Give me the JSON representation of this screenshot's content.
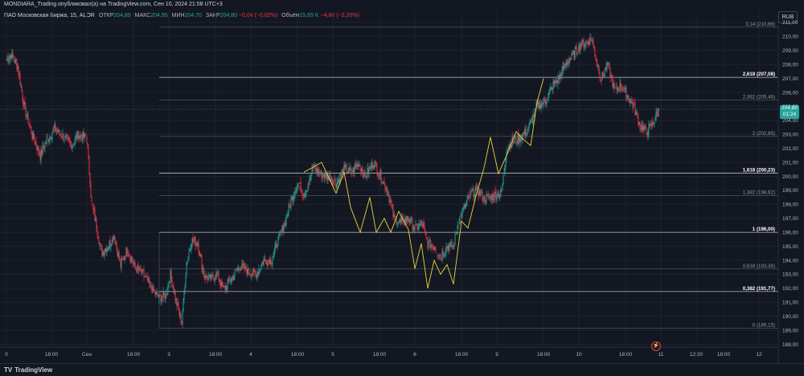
{
  "header": {
    "text": "MONDIARA_Trading опубликовал(а) на TradingView.com, Сен 10, 2024 21:58 UTC+3"
  },
  "legend": {
    "symbol": "ПАО Московская Биржа, 15, ALOR",
    "open_label": "ОТКР",
    "open": "204,80",
    "high_label": "МАКС",
    "high": "204,95",
    "low_label": "МИН",
    "low": "204,70",
    "close_label": "ЗАКР",
    "close": "204,80",
    "change": "−0,04 (−0,02%)",
    "volume_label": "Объём",
    "volume": "15,65 K",
    "volume_change": "−4,60 (−2,20%)"
  },
  "currency": "RUB",
  "price_tag": {
    "price": "204,80",
    "countdown": "01:24"
  },
  "footer": {
    "brand": "TradingView"
  },
  "colors": {
    "background": "#131722",
    "up": "#26a69a",
    "down": "#f23645",
    "fib_line": "#b2b5be",
    "zigzag": "#e8d539"
  },
  "chart_data": {
    "type": "candlestick",
    "ylim": [
      187.8,
      211.8
    ],
    "y_ticks": [
      "188,00",
      "189,00",
      "190,00",
      "191,00",
      "192,00",
      "193,00",
      "194,00",
      "195,00",
      "196,00",
      "197,00",
      "198,00",
      "199,00",
      "200,00",
      "201,00",
      "202,00",
      "203,00",
      "204,00",
      "205,00",
      "206,00",
      "207,00",
      "208,00",
      "209,00",
      "210,00",
      "211,00"
    ],
    "x_ticks": [
      {
        "label": "0",
        "i": 0
      },
      {
        "label": "18:00",
        "i": 56
      },
      {
        "label": "Сен",
        "i": 100
      },
      {
        "label": "18:00",
        "i": 158
      },
      {
        "label": "3",
        "i": 202
      },
      {
        "label": "18:00",
        "i": 260
      },
      {
        "label": "4",
        "i": 304
      },
      {
        "label": "18:00",
        "i": 362
      },
      {
        "label": "5",
        "i": 406
      },
      {
        "label": "18:00",
        "i": 464
      },
      {
        "label": "6",
        "i": 508
      },
      {
        "label": "18:00",
        "i": 566
      },
      {
        "label": "9",
        "i": 610
      },
      {
        "label": "18:00",
        "i": 668
      },
      {
        "label": "10",
        "i": 712
      },
      {
        "label": "18:00",
        "i": 770
      },
      {
        "label": "11",
        "i": 814
      },
      {
        "label": "12:30",
        "i": 858
      },
      {
        "label": "18:00",
        "i": 892
      },
      {
        "label": "12",
        "i": 936
      }
    ],
    "candle_anchors": [
      [
        0,
        208.4
      ],
      [
        6,
        208.7
      ],
      [
        14,
        207.8
      ],
      [
        22,
        205.0
      ],
      [
        32,
        203.0
      ],
      [
        42,
        201.5
      ],
      [
        50,
        202.6
      ],
      [
        60,
        203.4
      ],
      [
        70,
        202.9
      ],
      [
        80,
        202.2
      ],
      [
        90,
        203.0
      ],
      [
        100,
        202.7
      ],
      [
        106,
        198.0
      ],
      [
        112,
        196.5
      ],
      [
        118,
        194.5
      ],
      [
        126,
        195.0
      ],
      [
        134,
        195.8
      ],
      [
        142,
        193.6
      ],
      [
        150,
        194.8
      ],
      [
        160,
        193.5
      ],
      [
        170,
        193.0
      ],
      [
        180,
        192.0
      ],
      [
        190,
        191.3
      ],
      [
        198,
        191.5
      ],
      [
        204,
        193.0
      ],
      [
        212,
        190.8
      ],
      [
        218,
        189.6
      ],
      [
        224,
        193.8
      ],
      [
        230,
        195.4
      ],
      [
        238,
        195.2
      ],
      [
        246,
        192.9
      ],
      [
        254,
        192.6
      ],
      [
        262,
        193.0
      ],
      [
        270,
        191.9
      ],
      [
        280,
        192.7
      ],
      [
        290,
        193.6
      ],
      [
        300,
        193.2
      ],
      [
        310,
        193.0
      ],
      [
        320,
        194.0
      ],
      [
        330,
        194.0
      ],
      [
        338,
        195.5
      ],
      [
        346,
        196.6
      ],
      [
        354,
        198.3
      ],
      [
        362,
        199.5
      ],
      [
        370,
        198.8
      ],
      [
        376,
        199.5
      ],
      [
        382,
        200.7
      ],
      [
        392,
        200.1
      ],
      [
        402,
        200.0
      ],
      [
        410,
        199.5
      ],
      [
        420,
        200.5
      ],
      [
        430,
        200.3
      ],
      [
        438,
        201.0
      ],
      [
        446,
        200.0
      ],
      [
        456,
        201.0
      ],
      [
        466,
        200.0
      ],
      [
        474,
        199.0
      ],
      [
        482,
        197.0
      ],
      [
        490,
        196.7
      ],
      [
        500,
        197.0
      ],
      [
        508,
        196.2
      ],
      [
        516,
        196.7
      ],
      [
        524,
        195.2
      ],
      [
        532,
        195.0
      ],
      [
        540,
        194.3
      ],
      [
        548,
        195.0
      ],
      [
        556,
        195.0
      ],
      [
        562,
        196.8
      ],
      [
        570,
        197.8
      ],
      [
        578,
        198.8
      ],
      [
        586,
        199.0
      ],
      [
        594,
        198.4
      ],
      [
        602,
        198.5
      ],
      [
        610,
        198.7
      ],
      [
        616,
        198.9
      ],
      [
        622,
        202.0
      ],
      [
        630,
        202.5
      ],
      [
        640,
        202.8
      ],
      [
        650,
        203.5
      ],
      [
        660,
        205.0
      ],
      [
        670,
        205.4
      ],
      [
        680,
        206.5
      ],
      [
        690,
        207.3
      ],
      [
        698,
        208.3
      ],
      [
        706,
        208.7
      ],
      [
        714,
        209.5
      ],
      [
        722,
        209.5
      ],
      [
        728,
        209.9
      ],
      [
        734,
        208.2
      ],
      [
        740,
        207.0
      ],
      [
        748,
        208.0
      ],
      [
        756,
        206.2
      ],
      [
        764,
        206.5
      ],
      [
        772,
        205.8
      ],
      [
        780,
        205.0
      ],
      [
        788,
        203.6
      ],
      [
        796,
        203.2
      ],
      [
        804,
        203.8
      ],
      [
        812,
        204.8
      ]
    ],
    "fib_levels": [
      {
        "label": "0 (189,15)",
        "value": 189.15,
        "bold": false
      },
      {
        "label": "0,382 (191,77)",
        "value": 191.77,
        "bold": true
      },
      {
        "label": "0,618 (193,38)",
        "value": 193.38,
        "bold": false
      },
      {
        "label": "1 (196,00)",
        "value": 196.0,
        "bold": true
      },
      {
        "label": "1,382 (198,62)",
        "value": 198.62,
        "bold": false
      },
      {
        "label": "1,618 (200,23)",
        "value": 200.23,
        "bold": true
      },
      {
        "label": "2 (202,85)",
        "value": 202.85,
        "bold": false
      },
      {
        "label": "2,382 (205,46)",
        "value": 205.46,
        "bold": false
      },
      {
        "label": "2,618 (207,08)",
        "value": 207.08,
        "bold": true
      },
      {
        "label": "3,14 (210,66)",
        "value": 210.66,
        "bold": false
      }
    ],
    "zigzag": [
      [
        370,
        200.3
      ],
      [
        392,
        201.0
      ],
      [
        410,
        198.8
      ],
      [
        420,
        200.3
      ],
      [
        428,
        197.8
      ],
      [
        440,
        196.0
      ],
      [
        452,
        198.5
      ],
      [
        460,
        196.0
      ],
      [
        470,
        197.0
      ],
      [
        478,
        196.0
      ],
      [
        488,
        197.5
      ],
      [
        500,
        196.2
      ],
      [
        508,
        193.4
      ],
      [
        516,
        195.2
      ],
      [
        524,
        192.0
      ],
      [
        532,
        194.0
      ],
      [
        540,
        193.0
      ],
      [
        548,
        193.7
      ],
      [
        556,
        192.3
      ],
      [
        566,
        196.8
      ],
      [
        574,
        196.3
      ],
      [
        584,
        198.6
      ],
      [
        594,
        200.6
      ],
      [
        602,
        202.8
      ],
      [
        612,
        200.2
      ],
      [
        622,
        201.5
      ],
      [
        634,
        203.2
      ],
      [
        644,
        202.6
      ],
      [
        652,
        202.2
      ],
      [
        660,
        205.3
      ],
      [
        668,
        207.0
      ]
    ],
    "current_price": 204.8
  }
}
